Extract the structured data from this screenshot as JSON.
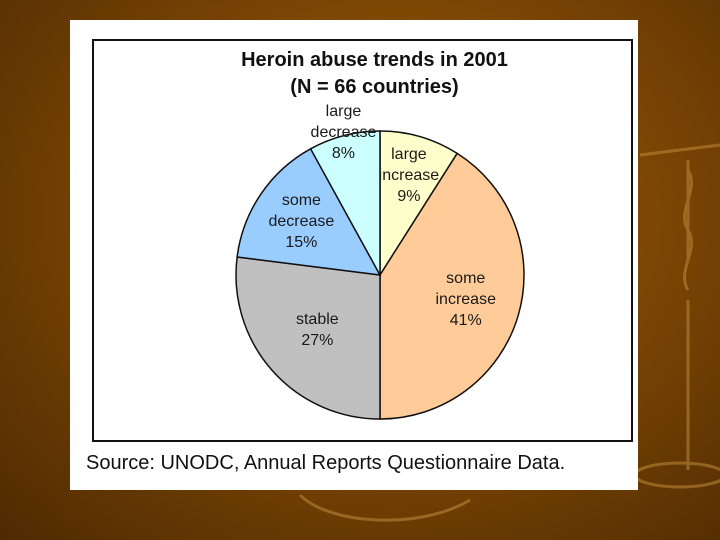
{
  "slide": {
    "source": "Source: UNODC, Annual Reports Questionnaire Data."
  },
  "chart_data": {
    "type": "pie",
    "title": "Heroin abuse trends in 2001",
    "subtitle": "(N = 66 countries)",
    "slices": [
      {
        "lines": [
          "large",
          "increase"
        ],
        "pct_label": "9%",
        "value": 9,
        "color": "#ffffcc"
      },
      {
        "lines": [
          "some",
          "increase"
        ],
        "pct_label": "41%",
        "value": 41,
        "color": "#ffcc99"
      },
      {
        "lines": [
          "stable"
        ],
        "pct_label": "27%",
        "value": 27,
        "color": "#c0c0c0"
      },
      {
        "lines": [
          "some",
          "decrease"
        ],
        "pct_label": "15%",
        "value": 15,
        "color": "#99ccff"
      },
      {
        "lines": [
          "large",
          "decrease"
        ],
        "pct_label": "8%",
        "value": 8,
        "color": "#ccffff"
      }
    ]
  }
}
